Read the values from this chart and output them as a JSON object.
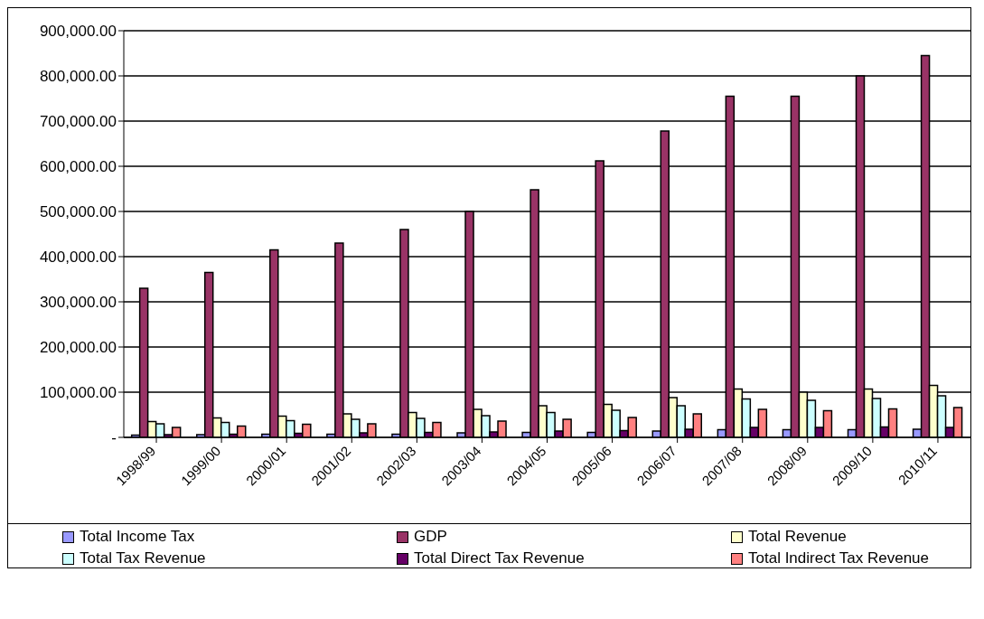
{
  "chart_data": {
    "type": "bar",
    "categories": [
      "1998/99",
      "1999/00",
      "2000/01",
      "2001/02",
      "2002/03",
      "2003/04",
      "2004/05",
      "2005/06",
      "2006/07",
      "2007/08",
      "2008/09",
      "2009/10",
      "2010/11"
    ],
    "series": [
      {
        "name": "Total Income Tax",
        "color": "#9999ff",
        "values": [
          5000,
          6000,
          7000,
          7000,
          7000,
          10000,
          11000,
          11000,
          14000,
          17000,
          17000,
          17000,
          18000
        ]
      },
      {
        "name": "GDP",
        "color": "#993366",
        "values": [
          330000,
          365000,
          415000,
          430000,
          460000,
          500000,
          548000,
          612000,
          678000,
          755000,
          755000,
          800000,
          845000
        ]
      },
      {
        "name": "Total Revenue",
        "color": "#ffffcc",
        "values": [
          35000,
          43000,
          47000,
          52000,
          55000,
          62000,
          70000,
          73000,
          88000,
          107000,
          100000,
          107000,
          115000
        ]
      },
      {
        "name": "Total Tax Revenue",
        "color": "#ccffff",
        "values": [
          30000,
          33000,
          37000,
          40000,
          42000,
          48000,
          55000,
          60000,
          70000,
          85000,
          82000,
          86000,
          92000
        ]
      },
      {
        "name": "Total Direct Tax Revenue",
        "color": "#660066",
        "values": [
          6000,
          7000,
          9000,
          10000,
          11000,
          12000,
          14000,
          15000,
          18000,
          22000,
          22000,
          23000,
          22000
        ]
      },
      {
        "name": "Total Indirect Tax Revenue",
        "color": "#ff8080",
        "values": [
          22000,
          25000,
          29000,
          30000,
          33000,
          36000,
          40000,
          44000,
          52000,
          62000,
          59000,
          63000,
          66000
        ]
      }
    ],
    "ylim": [
      0,
      900000
    ],
    "yticks": [
      {
        "value": 0,
        "label": "-"
      },
      {
        "value": 100000,
        "label": "100,000.00"
      },
      {
        "value": 200000,
        "label": "200,000.00"
      },
      {
        "value": 300000,
        "label": "300,000.00"
      },
      {
        "value": 400000,
        "label": "400,000.00"
      },
      {
        "value": 500000,
        "label": "500,000.00"
      },
      {
        "value": 600000,
        "label": "600,000.00"
      },
      {
        "value": 700000,
        "label": "700,000.00"
      },
      {
        "value": 800000,
        "label": "800,000.00"
      },
      {
        "value": 900000,
        "label": "900,000.00"
      }
    ],
    "grid": "y",
    "legend": "bottom"
  }
}
